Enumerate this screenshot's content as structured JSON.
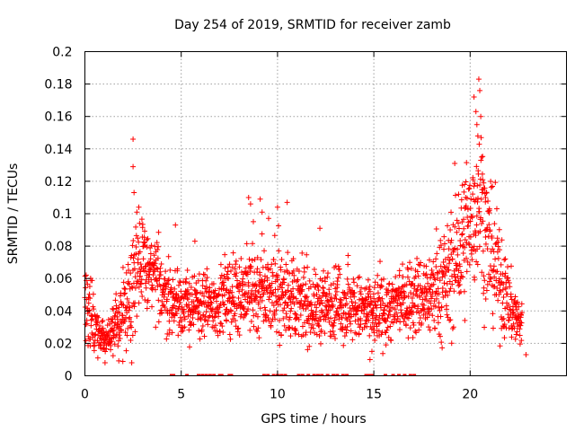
{
  "chart_data": {
    "type": "scatter",
    "title": "Day 254 of 2019, SRMTID for receiver zamb",
    "xlabel": "GPS time / hours",
    "ylabel": "SRMTID / TECUs",
    "xlim": [
      0,
      25
    ],
    "ylim": [
      0,
      0.2
    ],
    "x_ticks": [
      0,
      5,
      10,
      15,
      20
    ],
    "x_tick_labels": [
      "0",
      "5",
      "10",
      "15",
      "20"
    ],
    "y_ticks": [
      0,
      0.02,
      0.04,
      0.06,
      0.08,
      0.1,
      0.12,
      0.14,
      0.16,
      0.18,
      0.2
    ],
    "y_tick_labels": [
      "0",
      "0.02",
      "0.04",
      "0.06",
      "0.08",
      "0.1",
      "0.12",
      "0.14",
      "0.16",
      "0.18",
      "0.2"
    ],
    "grid": true,
    "series_color": "#ff0000",
    "marker": "plus",
    "trend": [
      [
        0.0,
        0.04,
        0.01
      ],
      [
        0.3,
        0.035,
        0.01
      ],
      [
        0.6,
        0.025,
        0.007
      ],
      [
        1.0,
        0.022,
        0.006
      ],
      [
        1.5,
        0.027,
        0.007
      ],
      [
        2.0,
        0.04,
        0.012
      ],
      [
        2.5,
        0.06,
        0.018
      ],
      [
        2.8,
        0.07,
        0.016
      ],
      [
        3.5,
        0.062,
        0.013
      ],
      [
        4.0,
        0.055,
        0.012
      ],
      [
        4.5,
        0.045,
        0.01
      ],
      [
        5.0,
        0.045,
        0.01
      ],
      [
        6.0,
        0.042,
        0.01
      ],
      [
        7.0,
        0.045,
        0.01
      ],
      [
        8.0,
        0.052,
        0.012
      ],
      [
        9.0,
        0.052,
        0.014
      ],
      [
        10.0,
        0.052,
        0.013
      ],
      [
        11.0,
        0.045,
        0.011
      ],
      [
        12.0,
        0.042,
        0.01
      ],
      [
        13.0,
        0.045,
        0.011
      ],
      [
        14.0,
        0.042,
        0.01
      ],
      [
        15.0,
        0.038,
        0.01
      ],
      [
        16.0,
        0.042,
        0.01
      ],
      [
        17.0,
        0.048,
        0.012
      ],
      [
        18.0,
        0.05,
        0.013
      ],
      [
        18.8,
        0.058,
        0.016
      ],
      [
        19.5,
        0.075,
        0.02
      ],
      [
        20.0,
        0.09,
        0.022
      ],
      [
        20.5,
        0.115,
        0.026
      ],
      [
        20.8,
        0.085,
        0.022
      ],
      [
        21.2,
        0.07,
        0.018
      ],
      [
        21.7,
        0.052,
        0.013
      ],
      [
        22.2,
        0.04,
        0.01
      ],
      [
        22.7,
        0.03,
        0.008
      ]
    ],
    "peaks": [
      {
        "x": 2.5,
        "y": 0.146
      },
      {
        "x": 2.5,
        "y": 0.129
      },
      {
        "x": 2.55,
        "y": 0.113
      },
      {
        "x": 2.7,
        "y": 0.101
      },
      {
        "x": 2.8,
        "y": 0.104
      },
      {
        "x": 4.7,
        "y": 0.093
      },
      {
        "x": 8.5,
        "y": 0.11
      },
      {
        "x": 8.6,
        "y": 0.106
      },
      {
        "x": 9.1,
        "y": 0.109
      },
      {
        "x": 9.2,
        "y": 0.101
      },
      {
        "x": 10.0,
        "y": 0.104
      },
      {
        "x": 10.5,
        "y": 0.107
      },
      {
        "x": 12.2,
        "y": 0.091
      },
      {
        "x": 14.8,
        "y": 0.01
      },
      {
        "x": 14.9,
        "y": 0.015
      },
      {
        "x": 19.2,
        "y": 0.131
      },
      {
        "x": 19.4,
        "y": 0.112
      },
      {
        "x": 19.7,
        "y": 0.118
      },
      {
        "x": 20.2,
        "y": 0.172
      },
      {
        "x": 20.3,
        "y": 0.163
      },
      {
        "x": 20.35,
        "y": 0.155
      },
      {
        "x": 20.4,
        "y": 0.148
      },
      {
        "x": 20.45,
        "y": 0.183
      },
      {
        "x": 20.5,
        "y": 0.176
      },
      {
        "x": 20.55,
        "y": 0.16
      },
      {
        "x": 20.6,
        "y": 0.135
      },
      {
        "x": 20.65,
        "y": 0.121
      },
      {
        "x": 20.7,
        "y": 0.119
      },
      {
        "x": 20.8,
        "y": 0.11
      },
      {
        "x": 21.0,
        "y": 0.103
      },
      {
        "x": 22.9,
        "y": 0.013
      }
    ],
    "zero_markers": [
      4.5,
      4.6,
      5.3,
      5.9,
      6.1,
      6.3,
      6.5,
      6.7,
      7.0,
      7.1,
      7.5,
      7.6,
      9.3,
      9.5,
      9.8,
      10.0,
      10.2,
      10.4,
      11.1,
      11.3,
      11.6,
      11.9,
      12.1,
      12.3,
      12.6,
      12.9,
      13.1,
      13.4,
      13.6,
      14.6,
      14.7,
      14.8,
      14.9,
      15.6,
      16.0,
      16.3,
      16.6,
      16.9,
      17.1
    ]
  }
}
